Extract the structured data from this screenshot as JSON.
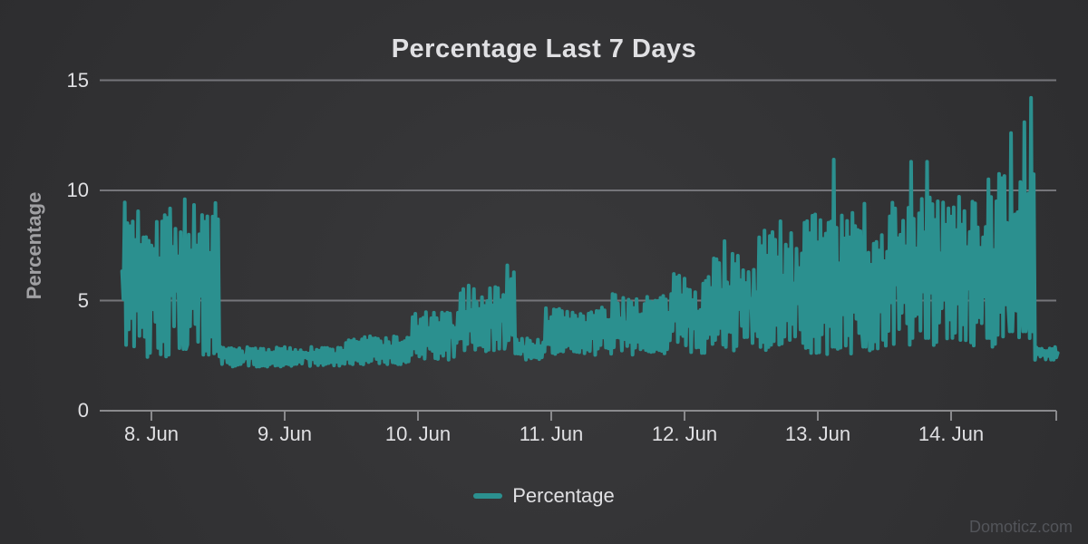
{
  "watermark": {
    "text": "Domoticz.com"
  },
  "colors": {
    "background_center": "#39393b",
    "background_edge": "#28282a",
    "grid": "#75757a",
    "axis": "#8a8a8d",
    "title": "#E0E0E3",
    "tick_label": "#E0E0E3",
    "axis_title": "#A0A0A3",
    "legend_text": "#E0E0E3",
    "watermark": "#53555A",
    "series": "#2b908f"
  },
  "chart_data": {
    "type": "line",
    "title": "Percentage Last 7 Days",
    "xlabel": "",
    "ylabel": "Percentage",
    "ylim": [
      0,
      15
    ],
    "yticks": [
      0,
      5,
      10,
      15
    ],
    "xtick_labels": [
      "8. Jun",
      "9. Jun",
      "10. Jun",
      "11. Jun",
      "12. Jun",
      "13. Jun",
      "14. Jun"
    ],
    "grid": true,
    "legend_position": "bottom",
    "series": [
      {
        "name": "Percentage",
        "color": "#2b908f",
        "x_unit_days_from": "8. Jun 00:00",
        "x_range": [
          -0.22,
          6.8
        ],
        "sample_step_days": 0.01,
        "noise_seed": 7,
        "envelope": [
          {
            "from": -0.22,
            "to": 0.52,
            "min": 2.4,
            "max": 9.5
          },
          {
            "from": 0.52,
            "to": 1.45,
            "min": 2.0,
            "max": 2.9
          },
          {
            "from": 1.45,
            "to": 1.95,
            "min": 2.1,
            "max": 3.4
          },
          {
            "from": 1.95,
            "to": 2.3,
            "min": 2.3,
            "max": 4.5
          },
          {
            "from": 2.3,
            "to": 2.62,
            "min": 2.5,
            "max": 5.7
          },
          {
            "from": 2.62,
            "to": 2.72,
            "min": 2.8,
            "max": 6.5
          },
          {
            "from": 2.72,
            "to": 2.95,
            "min": 2.3,
            "max": 3.3
          },
          {
            "from": 2.95,
            "to": 3.45,
            "min": 2.5,
            "max": 4.7
          },
          {
            "from": 3.45,
            "to": 3.9,
            "min": 2.5,
            "max": 5.3
          },
          {
            "from": 3.9,
            "to": 4.2,
            "min": 2.6,
            "max": 6.3
          },
          {
            "from": 4.2,
            "to": 4.55,
            "min": 2.6,
            "max": 7.2
          },
          {
            "from": 4.55,
            "to": 4.85,
            "min": 2.7,
            "max": 8.2
          },
          {
            "from": 4.85,
            "to": 5.5,
            "min": 2.5,
            "max": 9.0
          },
          {
            "from": 5.5,
            "to": 6.35,
            "min": 2.9,
            "max": 9.8
          },
          {
            "from": 6.35,
            "to": 6.62,
            "min": 3.2,
            "max": 11.0
          },
          {
            "from": 6.62,
            "to": 6.8,
            "min": 2.3,
            "max": 2.9
          }
        ],
        "spikes": [
          {
            "d": 0.25,
            "v": 9.6
          },
          {
            "d": 2.67,
            "v": 6.6
          },
          {
            "d": 4.3,
            "v": 7.7
          },
          {
            "d": 4.72,
            "v": 8.6
          },
          {
            "d": 5.12,
            "v": 11.4
          },
          {
            "d": 5.35,
            "v": 9.4
          },
          {
            "d": 5.7,
            "v": 11.3
          },
          {
            "d": 5.82,
            "v": 11.3
          },
          {
            "d": 6.28,
            "v": 10.5
          },
          {
            "d": 6.45,
            "v": 12.6
          },
          {
            "d": 6.55,
            "v": 13.1
          },
          {
            "d": 6.6,
            "v": 14.2
          }
        ]
      }
    ]
  }
}
